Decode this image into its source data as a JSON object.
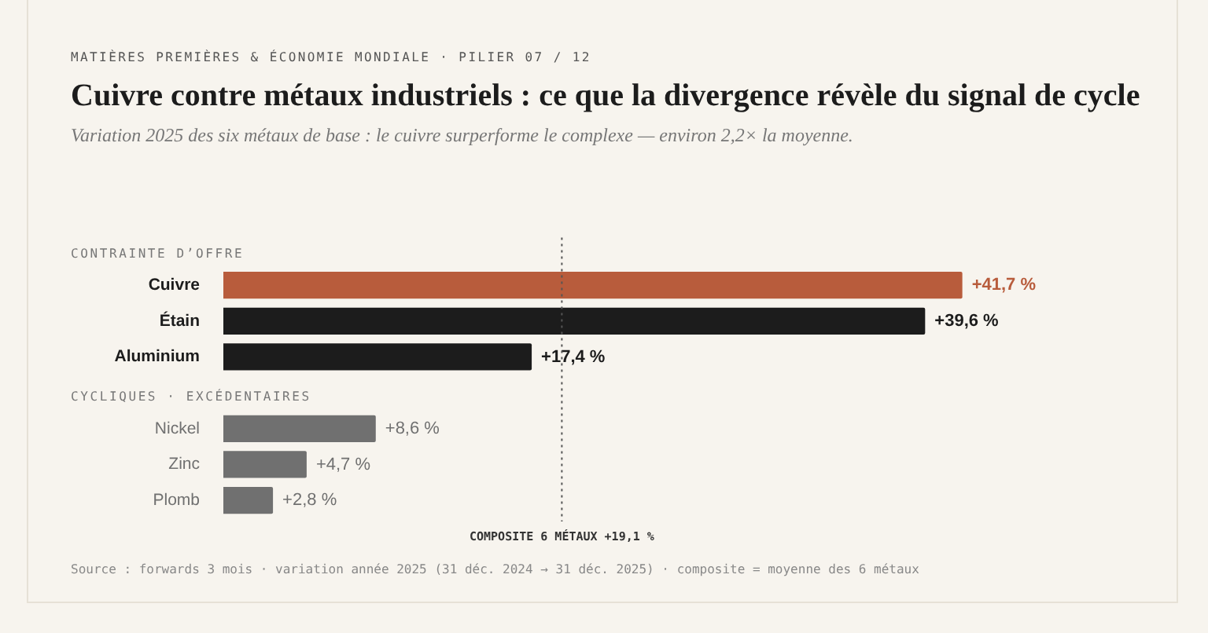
{
  "chart_data": {
    "type": "bar",
    "orientation": "horizontal",
    "title": "Cuivre contre métaux industriels : ce que la divergence révèle du signal de cycle",
    "subtitle": "Variation 2025 des six métaux de base : le cuivre surperforme le complexe — environ 2,2× la moyenne.",
    "categories": [
      null,
      "Cuivre",
      "Étain",
      "Aluminium",
      null,
      "Nickel",
      "Zinc",
      "Plomb"
    ],
    "values": [
      null,
      41.7,
      39.6,
      17.4,
      null,
      8.6,
      4.7,
      2.8
    ],
    "colors": [
      "#1c1c1c",
      "#b85c3c",
      "#1c1c1c",
      "#1c1c1c",
      "#1c1c1c",
      "#707070",
      "#707070",
      "#707070"
    ],
    "value_labels": [
      null,
      "+41,7 %",
      "+39,6 %",
      "+17,4 %",
      null,
      "+8,6 %",
      "+4,7 %",
      "+2,8 %"
    ],
    "ref_lines": [
      {
        "axis": "x",
        "value": 19.1,
        "label": "COMPOSITE 6 MÉTAUX +19,1 %",
        "color": "#555555",
        "line_style": "dotted"
      }
    ],
    "annotations": [
      "MATIÈRES PREMIÈRES & ÉCONOMIE MONDIALE · PILIER 07 / 12",
      "CONTRAINTE D’OFFRE",
      "CYCLIQUES · EXCÉDENTAIRES",
      "Source : forwards 3 mois · variation année 2025 (31 déc. 2024 → 31 déc. 2025) · composite = moyenne des 6 métaux"
    ],
    "legend": false
  }
}
